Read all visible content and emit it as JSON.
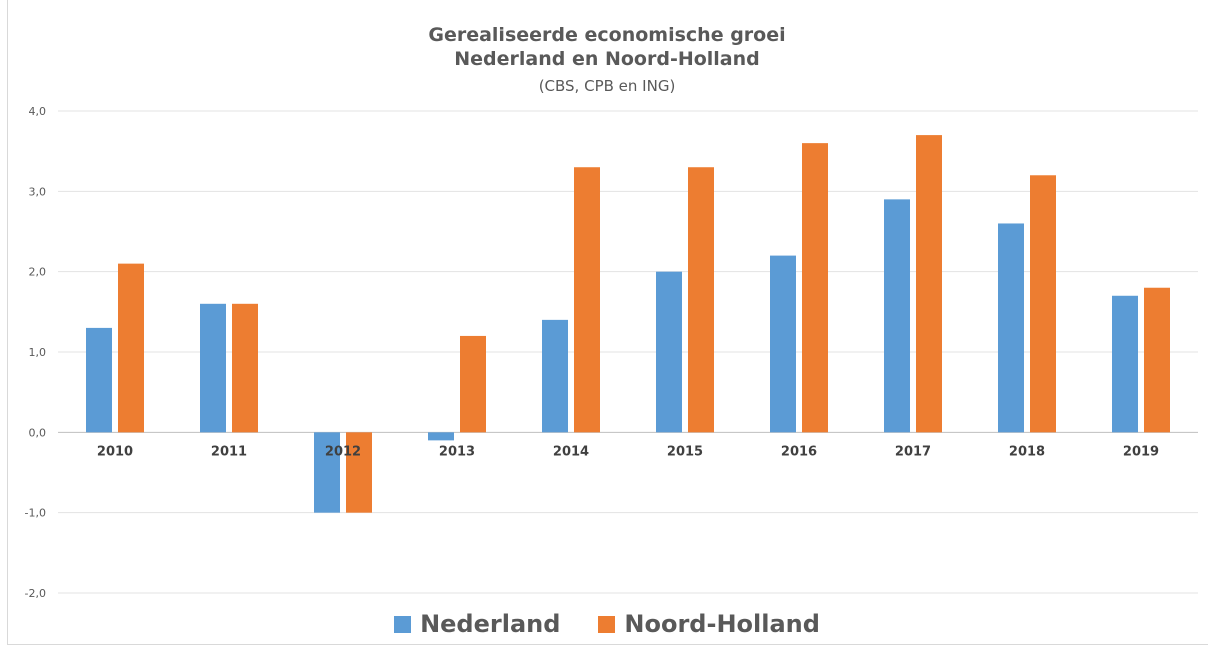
{
  "chart_data": {
    "type": "bar",
    "title": "Gerealiseerde economische groei",
    "title_line2": "Nederland en Noord-Holland",
    "subtitle": "(CBS, CPB en ING)",
    "xlabel": "",
    "ylabel": "",
    "categories": [
      "2010",
      "2011",
      "2012",
      "2013",
      "2014",
      "2015",
      "2016",
      "2017",
      "2018",
      "2019"
    ],
    "series": [
      {
        "name": "Nederland",
        "color": "#5b9bd5",
        "values": [
          1.3,
          1.6,
          -1.0,
          -0.1,
          1.4,
          2.0,
          2.2,
          2.9,
          2.6,
          1.7
        ]
      },
      {
        "name": "Noord-Holland",
        "color": "#ed7d31",
        "values": [
          2.1,
          1.6,
          -1.0,
          1.2,
          3.3,
          3.3,
          3.6,
          3.7,
          3.2,
          1.8
        ]
      }
    ],
    "ylim": [
      -2,
      4
    ],
    "yticks": [
      "-2,0",
      "-1,0",
      "0,0",
      "1,0",
      "2,0",
      "3,0",
      "4,0"
    ],
    "grid": true,
    "legend_position": "bottom"
  }
}
